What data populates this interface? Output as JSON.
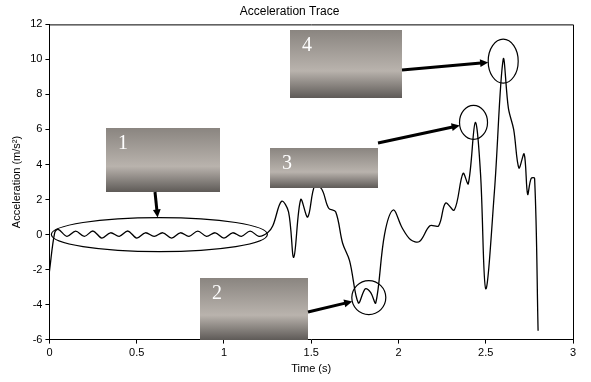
{
  "chart_data": {
    "type": "line",
    "title": "Acceleration Trace",
    "x_label": "Time (s)",
    "y_label": "Acceleration (m/s²)",
    "x": [
      0,
      0.03,
      0.05,
      0.1,
      0.15,
      0.2,
      0.25,
      0.3,
      0.35,
      0.4,
      0.45,
      0.5,
      0.55,
      0.6,
      0.65,
      0.7,
      0.75,
      0.8,
      0.85,
      0.9,
      0.95,
      1.0,
      1.05,
      1.1,
      1.15,
      1.2,
      1.25,
      1.28,
      1.33,
      1.37,
      1.4,
      1.44,
      1.48,
      1.52,
      1.56,
      1.6,
      1.64,
      1.68,
      1.72,
      1.77,
      1.81,
      1.84,
      1.87,
      1.92,
      1.97,
      2.02,
      2.07,
      2.12,
      2.18,
      2.23,
      2.27,
      2.32,
      2.37,
      2.4,
      2.44,
      2.47,
      2.5,
      2.55,
      2.6,
      2.63,
      2.66,
      2.69,
      2.72,
      2.74,
      2.76,
      2.78,
      2.8
    ],
    "series": [
      {
        "name": "Acceleration",
        "color": "#000000",
        "values": [
          -2.1,
          0.1,
          0.3,
          -0.1,
          0.2,
          -0.1,
          0.2,
          -0.2,
          0.1,
          -0.1,
          0.2,
          -0.2,
          0.1,
          -0.1,
          0.1,
          -0.2,
          0.1,
          -0.1,
          0.2,
          -0.1,
          0.1,
          -0.2,
          0.1,
          -0.1,
          0.2,
          -0.1,
          0.1,
          0.5,
          1.9,
          1.3,
          -1.3,
          2.0,
          1.0,
          2.8,
          2.6,
          1.5,
          1.3,
          -0.5,
          -1.5,
          -3.9,
          -3.1,
          -3.3,
          -3.9,
          0.0,
          1.4,
          0.4,
          -0.3,
          -0.4,
          0.5,
          0.5,
          1.8,
          1.4,
          3.5,
          2.9,
          6.4,
          3.5,
          -3.1,
          2.5,
          10.0,
          7.2,
          6.0,
          3.8,
          4.6,
          2.3,
          3.2,
          3.2,
          -5.5
        ]
      }
    ],
    "xlim": [
      0,
      3
    ],
    "xticks": [
      0,
      0.5,
      1,
      1.5,
      2,
      2.5,
      3
    ],
    "ylim": [
      -6,
      12
    ],
    "yticks": [
      -6,
      -4,
      -2,
      0,
      2,
      4,
      6,
      8,
      10,
      12
    ],
    "grid": false,
    "annotations": [
      {
        "text": "1",
        "x": 0.63,
        "y": 0
      },
      {
        "text": "2",
        "x": 1.83,
        "y": -3.6
      },
      {
        "text": "3",
        "x": 2.43,
        "y": 6.4
      },
      {
        "text": "4",
        "x": 2.6,
        "y": 9.9
      }
    ]
  }
}
